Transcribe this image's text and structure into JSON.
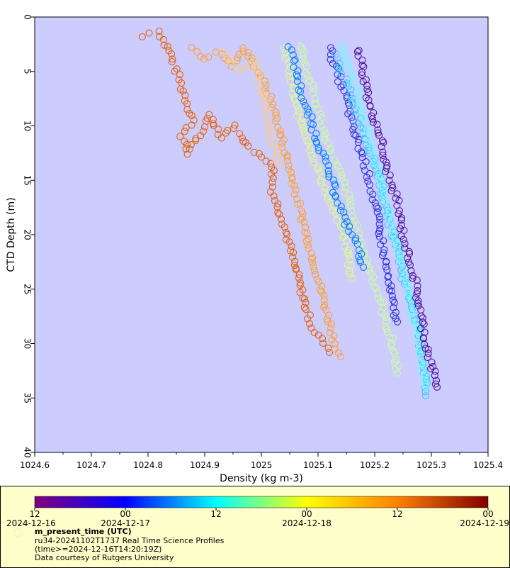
{
  "chart_data": {
    "type": "scatter",
    "xlabel": "Density (kg m-3)",
    "ylabel": "CTD Depth (m)",
    "xlim": [
      1024.6,
      1025.4
    ],
    "ylim": [
      0,
      40
    ],
    "y_inverted": true,
    "x_ticks": [
      "1024.6",
      "1024.7",
      "1024.8",
      "1024.9",
      "1025",
      "1025.1",
      "1025.2",
      "1025.3",
      "1025.4"
    ],
    "y_ticks": [
      "0",
      "5",
      "10",
      "15",
      "20",
      "25",
      "30",
      "35",
      "40"
    ],
    "plot_background": "#ccccff",
    "marker": "open-circle",
    "series": [
      {
        "color": "#e86000",
        "points": [
          [
            1024.79,
            1.8
          ],
          [
            1024.82,
            1.3
          ],
          [
            1024.83,
            2.5
          ],
          [
            1024.84,
            3.5
          ],
          [
            1024.85,
            5.0
          ],
          [
            1024.86,
            6.5
          ],
          [
            1024.87,
            8.0
          ],
          [
            1024.88,
            9.5
          ],
          [
            1024.86,
            11.0
          ],
          [
            1024.87,
            12.5
          ],
          [
            1024.91,
            9.0
          ],
          [
            1024.93,
            11.0
          ],
          [
            1024.95,
            10.0
          ],
          [
            1024.98,
            12.0
          ],
          [
            1025.0,
            13.0
          ],
          [
            1025.02,
            13.5
          ],
          [
            1025.02,
            16.0
          ],
          [
            1025.03,
            17.5
          ],
          [
            1025.04,
            19.0
          ],
          [
            1025.05,
            21.0
          ],
          [
            1025.06,
            23.0
          ],
          [
            1025.07,
            25.0
          ],
          [
            1025.08,
            27.0
          ],
          [
            1025.09,
            28.5
          ],
          [
            1025.11,
            30.0
          ],
          [
            1025.12,
            30.8
          ]
        ]
      },
      {
        "color": "#ffa030",
        "points": [
          [
            1024.88,
            2.9
          ],
          [
            1024.9,
            4.0
          ],
          [
            1024.92,
            3.2
          ],
          [
            1024.95,
            4.5
          ],
          [
            1024.97,
            2.8
          ],
          [
            1025.0,
            5.5
          ],
          [
            1025.02,
            8.0
          ],
          [
            1025.03,
            10.0
          ],
          [
            1025.04,
            12.0
          ],
          [
            1025.05,
            14.0
          ],
          [
            1025.06,
            16.0
          ],
          [
            1025.07,
            18.0
          ],
          [
            1025.08,
            20.0
          ],
          [
            1025.09,
            22.0
          ],
          [
            1025.1,
            24.0
          ],
          [
            1025.11,
            26.0
          ],
          [
            1025.12,
            28.0
          ],
          [
            1025.13,
            30.0
          ],
          [
            1025.14,
            31.2
          ]
        ]
      },
      {
        "color": "#ffcc80",
        "points": [
          [
            1024.93,
            3.3
          ],
          [
            1024.96,
            5.0
          ],
          [
            1024.99,
            4.0
          ],
          [
            1025.0,
            6.5
          ],
          [
            1025.01,
            9.0
          ],
          [
            1025.02,
            11.5
          ],
          [
            1025.03,
            13.5
          ]
        ]
      },
      {
        "color": "#e0ff80",
        "points": [
          [
            1025.04,
            2.8
          ],
          [
            1025.05,
            5.0
          ],
          [
            1025.06,
            8.0
          ],
          [
            1025.08,
            11.0
          ],
          [
            1025.1,
            14.0
          ],
          [
            1025.12,
            17.0
          ],
          [
            1025.14,
            19.0
          ],
          [
            1025.15,
            21.0
          ],
          [
            1025.16,
            24.0
          ]
        ]
      },
      {
        "color": "#ccff99",
        "points": [
          [
            1025.07,
            2.6
          ],
          [
            1025.08,
            5.0
          ],
          [
            1025.1,
            8.5
          ],
          [
            1025.12,
            12.0
          ],
          [
            1025.15,
            16.0
          ],
          [
            1025.17,
            20.0
          ],
          [
            1025.19,
            23.0
          ],
          [
            1025.21,
            26.0
          ],
          [
            1025.22,
            28.0
          ],
          [
            1025.23,
            30.0
          ],
          [
            1025.24,
            32.0
          ],
          [
            1025.24,
            32.7
          ]
        ]
      },
      {
        "color": "#0080ff",
        "points": [
          [
            1025.05,
            2.8
          ],
          [
            1025.06,
            4.5
          ],
          [
            1025.07,
            7.0
          ],
          [
            1025.09,
            10.0
          ],
          [
            1025.11,
            13.0
          ],
          [
            1025.13,
            16.0
          ],
          [
            1025.15,
            19.0
          ],
          [
            1025.17,
            21.0
          ],
          [
            1025.18,
            23.0
          ]
        ]
      },
      {
        "color": "#3030e0",
        "points": [
          [
            1025.12,
            2.9
          ],
          [
            1025.13,
            4.5
          ],
          [
            1025.15,
            7.5
          ],
          [
            1025.16,
            10.0
          ],
          [
            1025.18,
            13.0
          ],
          [
            1025.2,
            17.0
          ],
          [
            1025.21,
            20.0
          ],
          [
            1025.22,
            23.0
          ],
          [
            1025.23,
            26.0
          ],
          [
            1025.24,
            28.0
          ]
        ]
      },
      {
        "color": "#33ccff",
        "points": [
          [
            1025.13,
            3.5
          ],
          [
            1025.15,
            6.0
          ],
          [
            1025.17,
            9.0
          ],
          [
            1025.19,
            12.0
          ],
          [
            1025.21,
            15.0
          ],
          [
            1025.22,
            18.0
          ],
          [
            1025.24,
            21.0
          ],
          [
            1025.25,
            24.0
          ],
          [
            1025.27,
            27.0
          ],
          [
            1025.28,
            30.0
          ],
          [
            1025.29,
            33.0
          ],
          [
            1025.29,
            34.8
          ]
        ]
      },
      {
        "color": "#66ffff",
        "points": [
          [
            1025.14,
            2.5
          ],
          [
            1025.16,
            5.0
          ],
          [
            1025.18,
            9.0
          ],
          [
            1025.2,
            13.0
          ],
          [
            1025.22,
            17.0
          ],
          [
            1025.24,
            21.0
          ],
          [
            1025.26,
            25.0
          ],
          [
            1025.27,
            28.0
          ],
          [
            1025.28,
            31.0
          ],
          [
            1025.29,
            34.0
          ]
        ]
      },
      {
        "color": "#5010a0",
        "points": [
          [
            1025.17,
            3.0
          ],
          [
            1025.18,
            5.0
          ],
          [
            1025.19,
            8.0
          ],
          [
            1025.21,
            11.0
          ],
          [
            1025.22,
            14.0
          ],
          [
            1025.24,
            17.0
          ],
          [
            1025.25,
            20.0
          ],
          [
            1025.27,
            24.0
          ],
          [
            1025.28,
            27.0
          ],
          [
            1025.29,
            30.0
          ],
          [
            1025.3,
            32.0
          ],
          [
            1025.31,
            34.0
          ]
        ]
      }
    ]
  },
  "colorbar": {
    "label": "m_present_time (UTC)",
    "stops": [
      "#800080",
      "#0000ff",
      "#00ffff",
      "#ffff00",
      "#ff8000",
      "#800000"
    ],
    "tick_hours": [
      "12",
      "00",
      "12",
      "00",
      "12",
      "00"
    ],
    "tick_dates": [
      "2024-12-16",
      "2024-12-17",
      "2024-12-18",
      "2024-12-19"
    ]
  },
  "legend": {
    "marker_color": "#ccff99",
    "line1": "ru34-20241102T1737 Real Time Science Profiles",
    "line2": "(time>=2024-12-16T14:20:19Z)",
    "line3": "Data courtesy of Rutgers University"
  }
}
